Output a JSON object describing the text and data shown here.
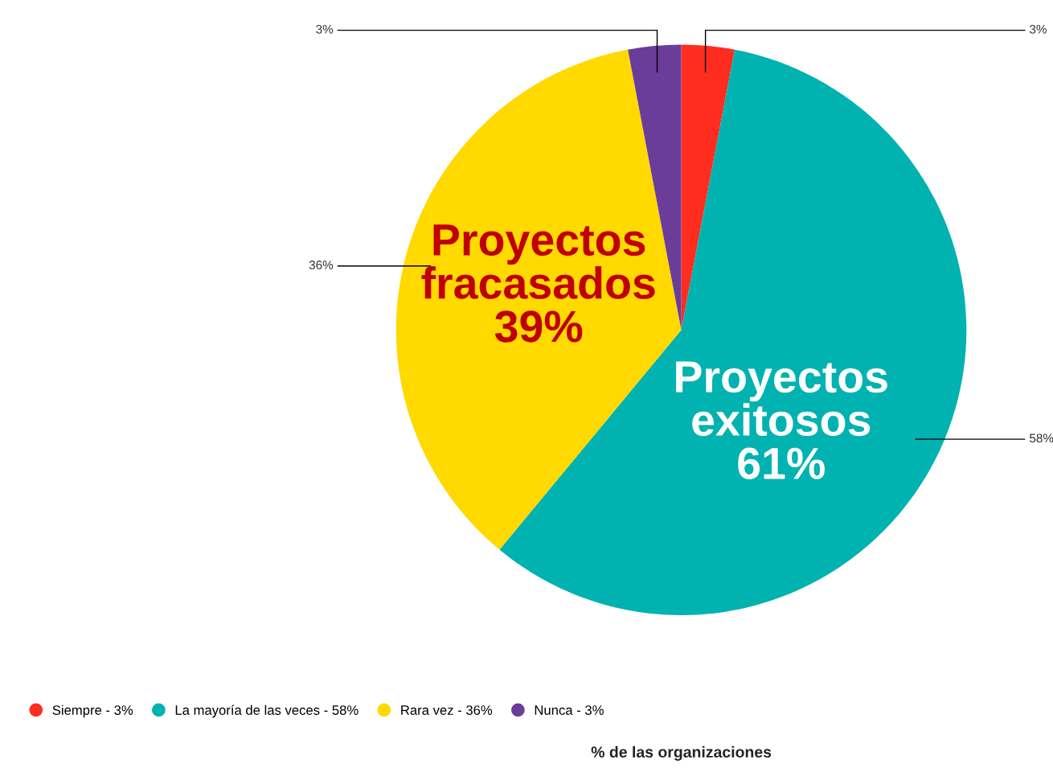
{
  "chart_data": {
    "type": "pie",
    "categories": [
      "Siempre - 3%",
      "La mayoría de las veces - 58%",
      "Rara vez - 36%",
      "Nunca - 3%"
    ],
    "values": [
      3,
      58,
      36,
      3
    ],
    "colors": [
      "#ff2d1f",
      "#00b2b0",
      "#ffd900",
      "#6a3d9a"
    ],
    "value_labels": [
      "3%",
      "58%",
      "36%",
      "3%"
    ],
    "xlabel": "% de las organizaciones",
    "annotations": [
      "Proyectos fracasados 39%",
      "Proyectos exitosos 61%"
    ],
    "legend": "bottom left"
  }
}
